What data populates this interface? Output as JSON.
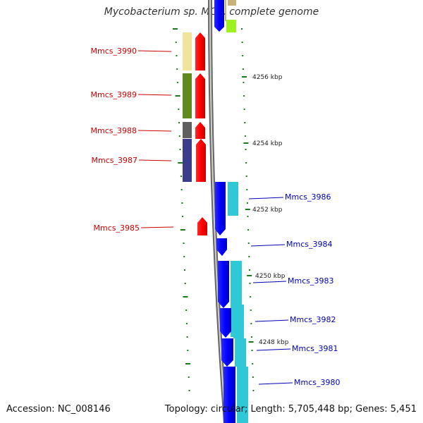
{
  "header": {
    "title": "Mycobacterium sp. MCS, complete genome"
  },
  "footer": {
    "accession": "Accession: NC_008146",
    "topology": "Topology: circular; Length: 5,705,448 bp; Genes: 5,451"
  },
  "colors": {
    "reverse_strand": "#ff0000",
    "forward_strand": "#0000ff",
    "reverse_label": "#cc0000",
    "forward_label": "#0000b0",
    "tick": "#1a7a1a",
    "backbone": "#888888"
  },
  "ruler": [
    "4256 kbp",
    "4254 kbp",
    "4252 kbp",
    "4250 kbp",
    "4248 kbp"
  ],
  "genes_reverse": [
    {
      "id": "Mmcs_3990",
      "feature_color": "#f0e39a"
    },
    {
      "id": "Mmcs_3989",
      "feature_color": "#5e8a1e"
    },
    {
      "id": "Mmcs_3988",
      "feature_color": "#5f5f5f"
    },
    {
      "id": "Mmcs_3987",
      "feature_color": "#3c3c8c"
    },
    {
      "id": "Mmcs_3985",
      "feature_color": ""
    }
  ],
  "genes_forward": [
    {
      "id": "Mmcs_3986",
      "feature_color": "#2ec8d6"
    },
    {
      "id": "Mmcs_3984",
      "feature_color": ""
    },
    {
      "id": "Mmcs_3983",
      "feature_color": "#2ec8d6"
    },
    {
      "id": "Mmcs_3982",
      "feature_color": "#2ec8d6"
    },
    {
      "id": "Mmcs_3981",
      "feature_color": "#2ec8d6"
    },
    {
      "id": "Mmcs_3980",
      "feature_color": "#2ec8d6"
    }
  ]
}
